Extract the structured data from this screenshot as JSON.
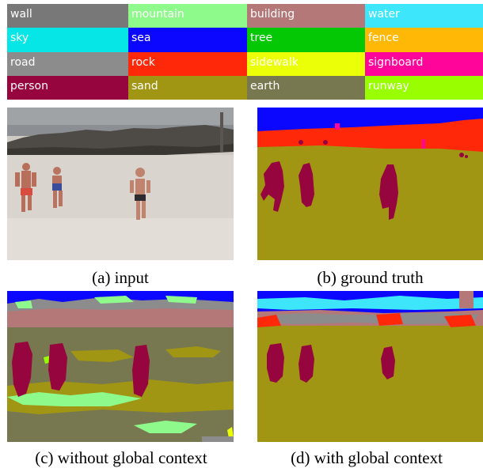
{
  "legend": [
    {
      "label": "wall",
      "color": "#787878"
    },
    {
      "label": "mountain",
      "color": "#8ffa8c"
    },
    {
      "label": "building",
      "color": "#b47878"
    },
    {
      "label": "water",
      "color": "#3de6fa"
    },
    {
      "label": "sky",
      "color": "#06e6e6"
    },
    {
      "label": "sea",
      "color": "#0b07ff"
    },
    {
      "label": "tree",
      "color": "#04c803"
    },
    {
      "label": "fence",
      "color": "#ffb806"
    },
    {
      "label": "road",
      "color": "#8c8c8c"
    },
    {
      "label": "rock",
      "color": "#ff290a"
    },
    {
      "label": "sidewalk",
      "color": "#ebff07"
    },
    {
      "label": "signboard",
      "color": "#ff0599"
    },
    {
      "label": "person",
      "color": "#96053d"
    },
    {
      "label": "sand",
      "color": "#a09614"
    },
    {
      "label": "earth",
      "color": "#787850"
    },
    {
      "label": "runway",
      "color": "#99ff00"
    }
  ],
  "captions": {
    "a": "(a) input",
    "b": "(b) ground truth",
    "c": "(c) without global context",
    "d": "(d) with global context"
  }
}
